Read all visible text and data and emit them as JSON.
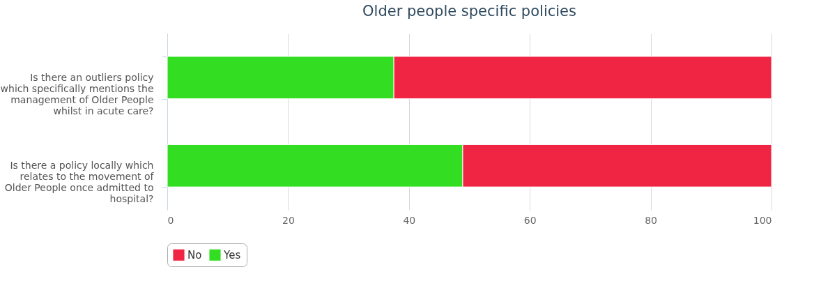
{
  "chart_data": {
    "type": "bar",
    "title": "Older people specific policies",
    "orientation": "horizontal",
    "stacked": true,
    "categories": [
      "Is there an outliers policy which specifically mentions the management of Older People whilst in acute care?",
      "Is there a policy locally which relates to the movement of Older People once admitted to hospital?"
    ],
    "series": [
      {
        "name": "Yes",
        "color": "#33dd22",
        "values": [
          37.5,
          48.9
        ]
      },
      {
        "name": "No",
        "color": "#f02443",
        "values": [
          62.5,
          51.1
        ]
      }
    ],
    "xlim": [
      0,
      100
    ],
    "xticks": [
      0,
      20,
      40,
      60,
      80,
      100
    ],
    "grid": "x",
    "legend": "bottom"
  }
}
